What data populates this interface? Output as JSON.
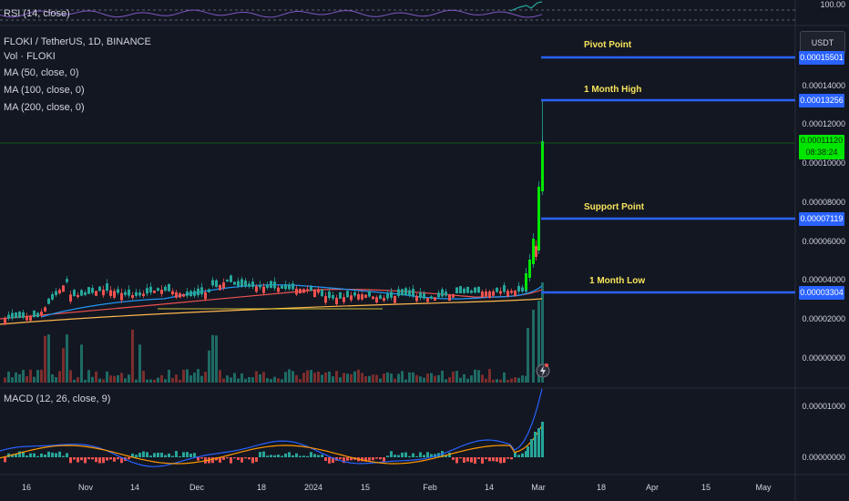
{
  "rsi": {
    "label": "RSI (14, close)",
    "scale_top": "100.00"
  },
  "main": {
    "symbol_line": "FLOKI / TetherUS, 1D, BINANCE",
    "indicators": [
      "Vol · FLOKI",
      "MA (50, close, 0)",
      "MA (100, close, 0)",
      "MA (200, close, 0)"
    ]
  },
  "annotations": {
    "pivot": "Pivot Point",
    "month_high": "1 Month High",
    "support": "Support Point",
    "month_low": "1 Month Low"
  },
  "price_axis": {
    "currency": "USDT",
    "ticks": [
      "0.00014000",
      "0.00012000",
      "0.00010000",
      "0.00008000",
      "0.00006000",
      "0.00004000",
      "0.00002000",
      "0.00000000"
    ],
    "tags": {
      "pivot": "0.00015501",
      "month_high": "0.00013256",
      "current_price": "0.00011120",
      "countdown": "08:38:24",
      "support": "0.00007119",
      "month_low": "0.00003304"
    }
  },
  "macd": {
    "label": "MACD (12, 26, close, 9)",
    "ticks": [
      "0.00001000",
      "0.00000000"
    ]
  },
  "time_axis": [
    "16",
    "Nov",
    "14",
    "Dec",
    "18",
    "2024",
    "15",
    "Feb",
    "14",
    "Mar",
    "18",
    "Apr",
    "15",
    "May"
  ],
  "colors": {
    "background": "#131722",
    "up": "#26a69a",
    "down": "#ef5350",
    "level_line": "#2962ff",
    "annotation": "#f7e45c",
    "price_green": "#00e600",
    "ma50": "#2196f3",
    "ma100": "#ef5350",
    "ma200": "#ffb74d"
  }
}
